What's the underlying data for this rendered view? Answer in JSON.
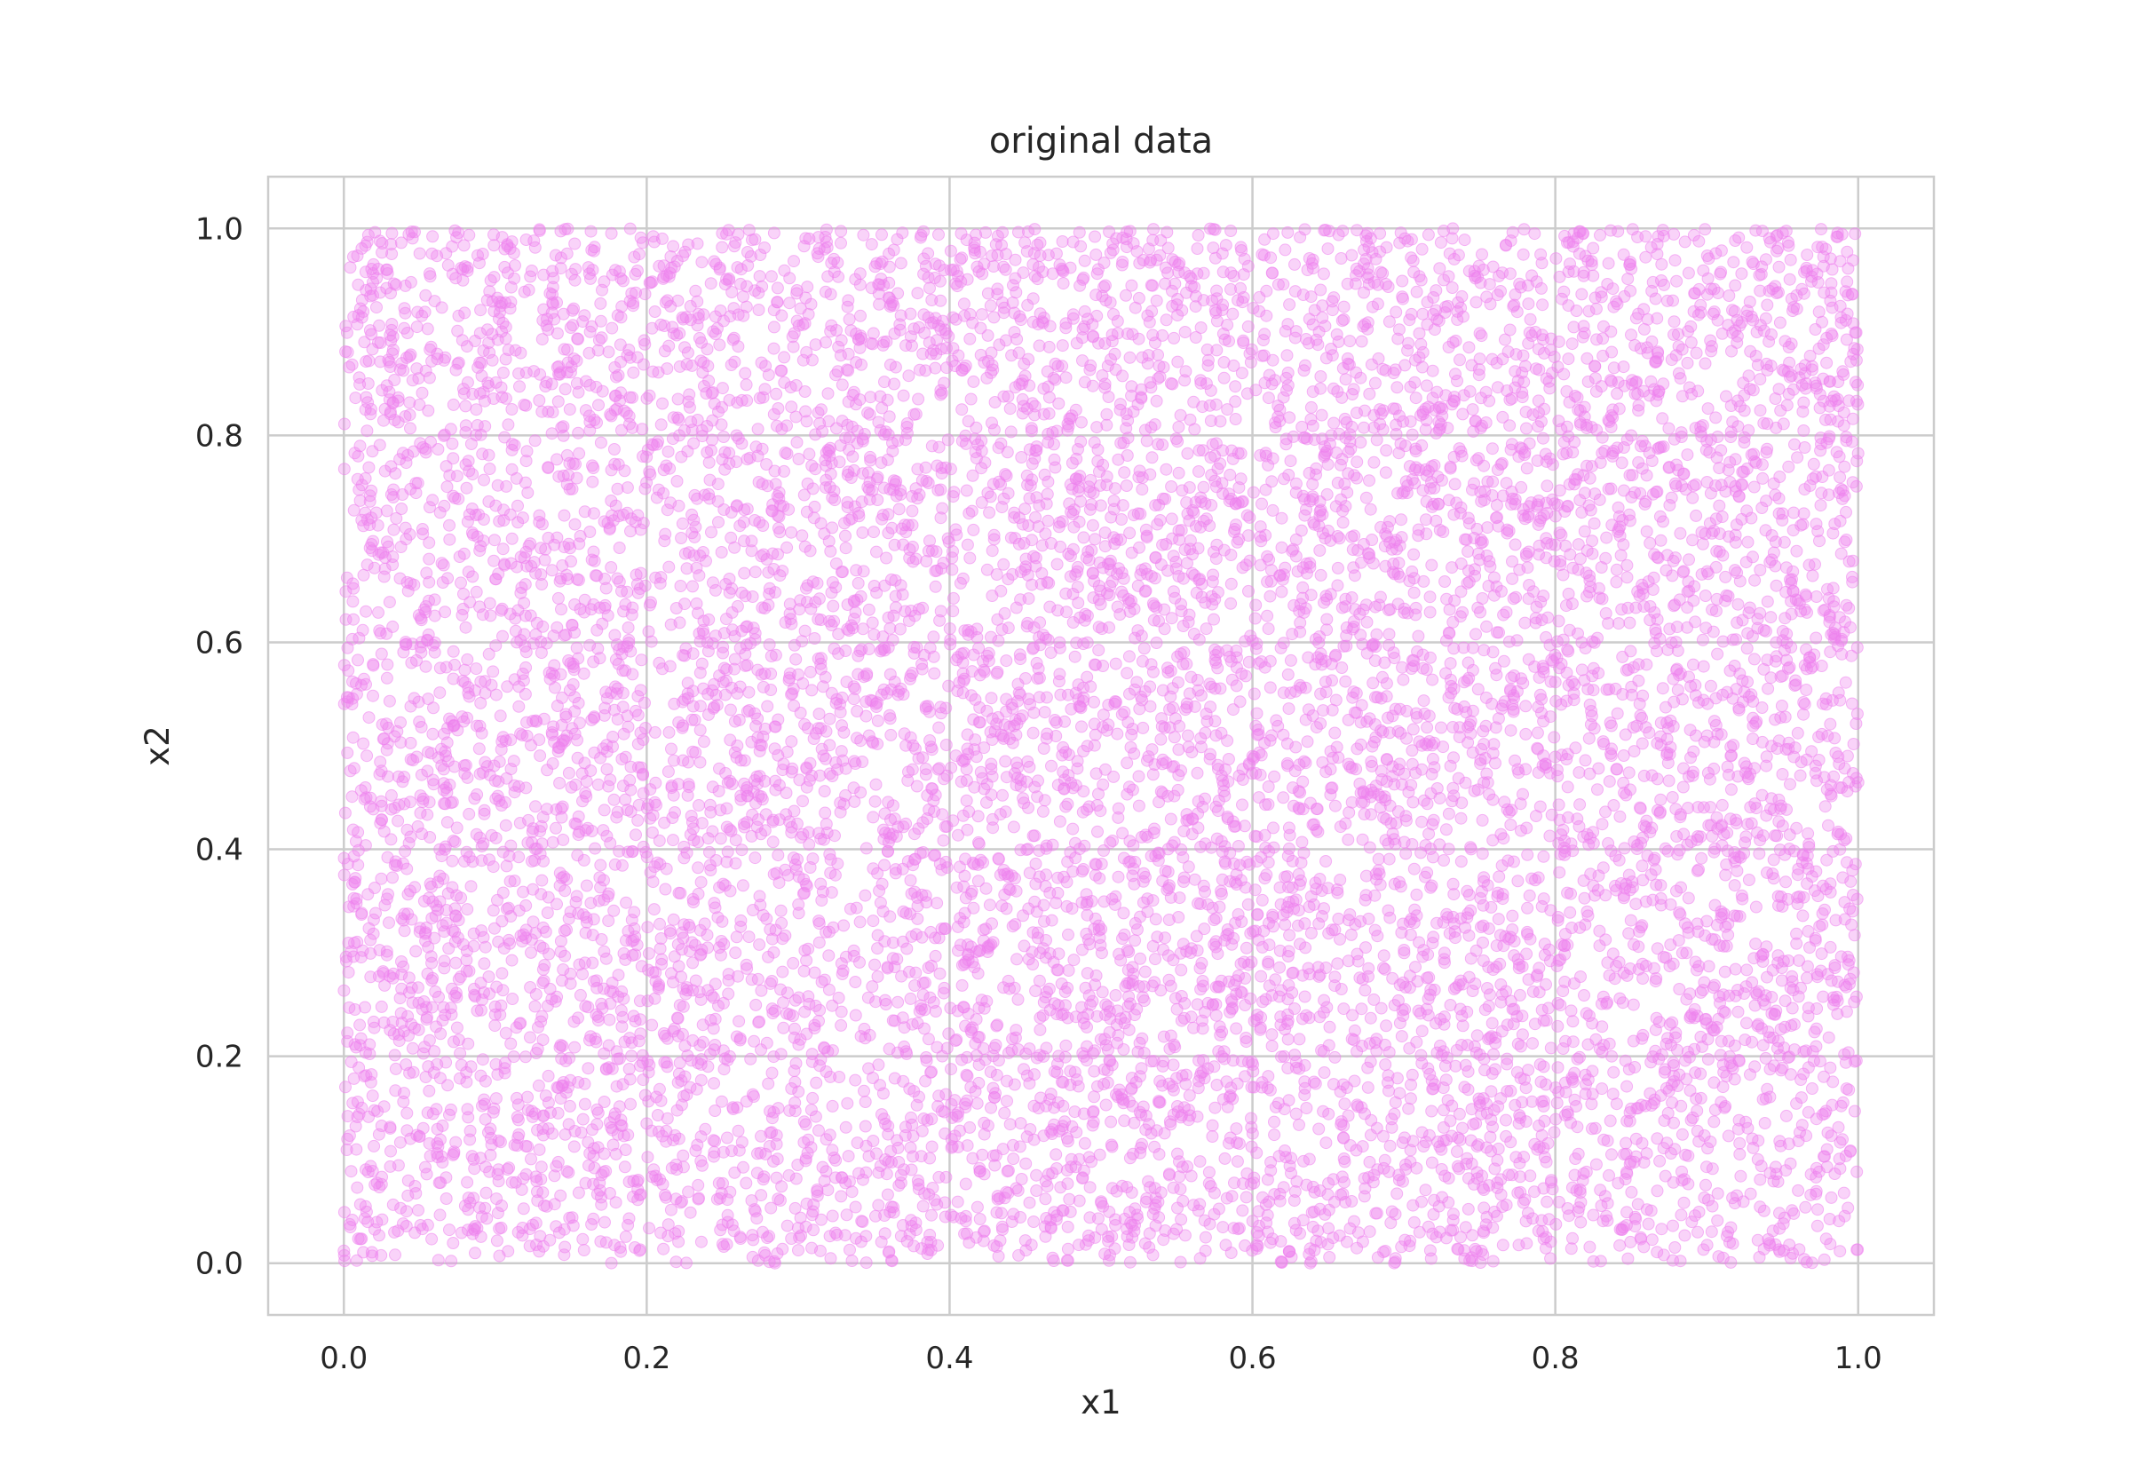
{
  "chart_data": {
    "type": "scatter",
    "title": "original data",
    "xlabel": "x1",
    "ylabel": "x2",
    "xlim": [
      -0.05,
      1.05
    ],
    "ylim": [
      -0.05,
      1.05
    ],
    "xticks": [
      0.0,
      0.2,
      0.4,
      0.6,
      0.8,
      1.0
    ],
    "yticks": [
      0.0,
      0.2,
      0.4,
      0.6,
      0.8,
      1.0
    ],
    "xtick_labels": [
      "0.0",
      "0.2",
      "0.4",
      "0.6",
      "0.8",
      "1.0"
    ],
    "ytick_labels": [
      "0.0",
      "0.2",
      "0.4",
      "0.6",
      "0.8",
      "1.0"
    ],
    "grid": true,
    "legend": "none",
    "series": [
      {
        "color": "#ee82ee",
        "alpha": 0.35,
        "distribution": "uniform",
        "x_range": [
          0.0,
          1.0
        ],
        "y_range": [
          0.0,
          1.0
        ],
        "n_points": 10000
      }
    ]
  }
}
